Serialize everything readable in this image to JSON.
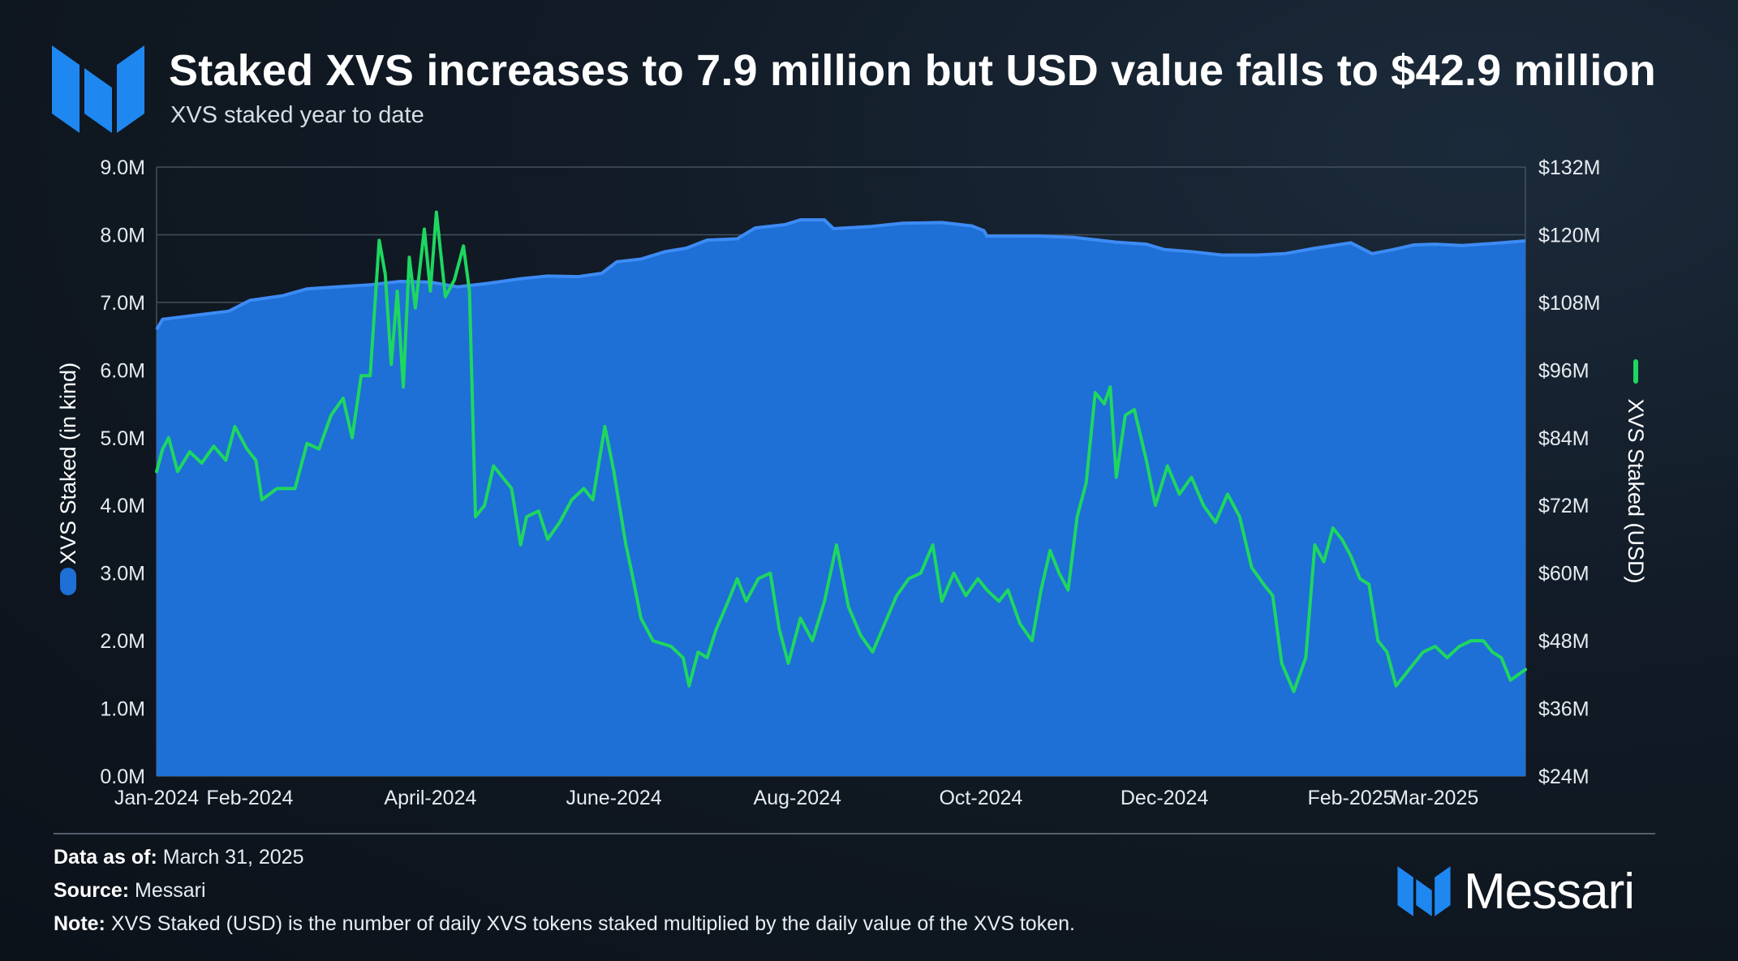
{
  "header": {
    "title": "Staked XVS increases to 7.9 million but USD value falls to $42.9 million",
    "subtitle": "XVS staked year to date"
  },
  "colors": {
    "area_fill": "#1e6fd6",
    "area_line": "#3d8bf5",
    "usd_line": "#1ed760",
    "axis_text": "#e6ebf0",
    "grid": "#44505d",
    "logo_blue": "#1e88f0"
  },
  "footer": {
    "data_as_of_label": "Data as of:",
    "data_as_of_value": " March 31, 2025",
    "source_label": "Source:",
    "source_value": " Messari",
    "note_label": "Note:",
    "note_value": " XVS Staked (USD) is the number of daily XVS tokens staked multiplied by the daily value of the XVS token."
  },
  "brand": {
    "name": "Messari",
    "icon": "messari-logo-icon"
  },
  "chart_data": {
    "type": "area+line",
    "title": "Staked XVS increases to 7.9 million but USD value falls to $42.9 million",
    "subtitle": "XVS staked year to date",
    "xlabel": "",
    "ylabel_left": "XVS Staked (in kind)",
    "ylabel_right": "XVS Staked (USD)",
    "ylim_left": [
      0,
      9000000
    ],
    "ylim_right": [
      24000000,
      132000000
    ],
    "xlim": [
      "2024-01-01",
      "2025-03-31"
    ],
    "y_ticks_left": [
      "0.0M",
      "1.0M",
      "2.0M",
      "3.0M",
      "4.0M",
      "5.0M",
      "6.0M",
      "7.0M",
      "8.0M",
      "9.0M"
    ],
    "y_ticks_right": [
      "$24M",
      "$36M",
      "$48M",
      "$60M",
      "$72M",
      "$84M",
      "$96M",
      "$108M",
      "$120M",
      "$132M"
    ],
    "x_ticks": [
      {
        "label": "Jan-2024",
        "date": "2024-01-01"
      },
      {
        "label": "Feb-2024",
        "date": "2024-02-01"
      },
      {
        "label": "April-2024",
        "date": "2024-04-01"
      },
      {
        "label": "June-2024",
        "date": "2024-06-01"
      },
      {
        "label": "Aug-2024",
        "date": "2024-08-01"
      },
      {
        "label": "Oct-2024",
        "date": "2024-10-01"
      },
      {
        "label": "Dec-2024",
        "date": "2024-12-01"
      },
      {
        "label": "Feb-2025",
        "date": "2025-02-01"
      },
      {
        "label": "Mar-2025",
        "date": "2025-03-01"
      }
    ],
    "grid": true,
    "series": [
      {
        "name": "XVS Staked (in kind)",
        "kind": "area",
        "axis": "left",
        "unit": "tokens",
        "points": [
          [
            "2024-01-01",
            6600000
          ],
          [
            "2024-01-03",
            6750000
          ],
          [
            "2024-01-12",
            6800000
          ],
          [
            "2024-01-25",
            6870000
          ],
          [
            "2024-02-01",
            7030000
          ],
          [
            "2024-02-12",
            7100000
          ],
          [
            "2024-02-20",
            7200000
          ],
          [
            "2024-03-01",
            7230000
          ],
          [
            "2024-03-12",
            7260000
          ],
          [
            "2024-03-22",
            7310000
          ],
          [
            "2024-04-01",
            7300000
          ],
          [
            "2024-04-10",
            7230000
          ],
          [
            "2024-04-20",
            7280000
          ],
          [
            "2024-05-01",
            7350000
          ],
          [
            "2024-05-10",
            7390000
          ],
          [
            "2024-05-20",
            7380000
          ],
          [
            "2024-05-28",
            7430000
          ],
          [
            "2024-06-02",
            7600000
          ],
          [
            "2024-06-10",
            7640000
          ],
          [
            "2024-06-18",
            7750000
          ],
          [
            "2024-06-25",
            7800000
          ],
          [
            "2024-07-02",
            7920000
          ],
          [
            "2024-07-12",
            7940000
          ],
          [
            "2024-07-18",
            8100000
          ],
          [
            "2024-07-28",
            8150000
          ],
          [
            "2024-08-02",
            8220000
          ],
          [
            "2024-08-10",
            8220000
          ],
          [
            "2024-08-13",
            8090000
          ],
          [
            "2024-08-25",
            8120000
          ],
          [
            "2024-09-05",
            8170000
          ],
          [
            "2024-09-18",
            8180000
          ],
          [
            "2024-09-28",
            8130000
          ],
          [
            "2024-10-02",
            8060000
          ],
          [
            "2024-10-03",
            7980000
          ],
          [
            "2024-10-20",
            7980000
          ],
          [
            "2024-11-01",
            7960000
          ],
          [
            "2024-11-15",
            7890000
          ],
          [
            "2024-11-25",
            7860000
          ],
          [
            "2024-12-01",
            7780000
          ],
          [
            "2024-12-10",
            7750000
          ],
          [
            "2024-12-20",
            7700000
          ],
          [
            "2025-01-01",
            7700000
          ],
          [
            "2025-01-10",
            7720000
          ],
          [
            "2025-01-20",
            7800000
          ],
          [
            "2025-02-01",
            7880000
          ],
          [
            "2025-02-08",
            7720000
          ],
          [
            "2025-02-15",
            7780000
          ],
          [
            "2025-02-22",
            7850000
          ],
          [
            "2025-03-01",
            7860000
          ],
          [
            "2025-03-10",
            7840000
          ],
          [
            "2025-03-20",
            7870000
          ],
          [
            "2025-03-31",
            7910000
          ]
        ]
      },
      {
        "name": "XVS Staked (USD)",
        "kind": "line",
        "axis": "right",
        "unit": "USD",
        "points": [
          [
            "2024-01-01",
            78000000
          ],
          [
            "2024-01-03",
            82000000
          ],
          [
            "2024-01-05",
            84000000
          ],
          [
            "2024-01-08",
            78000000
          ],
          [
            "2024-01-12",
            81500000
          ],
          [
            "2024-01-16",
            79500000
          ],
          [
            "2024-01-20",
            82500000
          ],
          [
            "2024-01-24",
            80000000
          ],
          [
            "2024-01-27",
            86000000
          ],
          [
            "2024-01-31",
            82000000
          ],
          [
            "2024-02-03",
            80000000
          ],
          [
            "2024-02-05",
            73000000
          ],
          [
            "2024-02-10",
            75000000
          ],
          [
            "2024-02-16",
            75000000
          ],
          [
            "2024-02-20",
            83000000
          ],
          [
            "2024-02-24",
            82000000
          ],
          [
            "2024-02-28",
            88000000
          ],
          [
            "2024-03-03",
            91000000
          ],
          [
            "2024-03-06",
            84000000
          ],
          [
            "2024-03-09",
            95000000
          ],
          [
            "2024-03-12",
            95000000
          ],
          [
            "2024-03-15",
            119000000
          ],
          [
            "2024-03-17",
            113000000
          ],
          [
            "2024-03-19",
            97000000
          ],
          [
            "2024-03-21",
            110000000
          ],
          [
            "2024-03-23",
            93000000
          ],
          [
            "2024-03-25",
            116000000
          ],
          [
            "2024-03-27",
            107000000
          ],
          [
            "2024-03-30",
            121000000
          ],
          [
            "2024-04-01",
            110000000
          ],
          [
            "2024-04-03",
            124000000
          ],
          [
            "2024-04-06",
            109000000
          ],
          [
            "2024-04-09",
            112000000
          ],
          [
            "2024-04-12",
            118000000
          ],
          [
            "2024-04-14",
            110000000
          ],
          [
            "2024-04-16",
            70000000
          ],
          [
            "2024-04-19",
            72000000
          ],
          [
            "2024-04-22",
            79000000
          ],
          [
            "2024-04-25",
            77000000
          ],
          [
            "2024-04-28",
            75000000
          ],
          [
            "2024-05-01",
            65000000
          ],
          [
            "2024-05-03",
            70000000
          ],
          [
            "2024-05-07",
            71000000
          ],
          [
            "2024-05-10",
            66000000
          ],
          [
            "2024-05-14",
            69000000
          ],
          [
            "2024-05-18",
            73000000
          ],
          [
            "2024-05-22",
            75000000
          ],
          [
            "2024-05-25",
            73000000
          ],
          [
            "2024-05-29",
            86000000
          ],
          [
            "2024-06-01",
            78000000
          ],
          [
            "2024-06-05",
            65000000
          ],
          [
            "2024-06-07",
            60000000
          ],
          [
            "2024-06-10",
            52000000
          ],
          [
            "2024-06-14",
            48000000
          ],
          [
            "2024-06-20",
            47000000
          ],
          [
            "2024-06-24",
            45000000
          ],
          [
            "2024-06-26",
            40000000
          ],
          [
            "2024-06-29",
            46000000
          ],
          [
            "2024-07-02",
            45000000
          ],
          [
            "2024-07-05",
            50000000
          ],
          [
            "2024-07-09",
            55000000
          ],
          [
            "2024-07-12",
            59000000
          ],
          [
            "2024-07-15",
            55000000
          ],
          [
            "2024-07-19",
            59000000
          ],
          [
            "2024-07-23",
            60000000
          ],
          [
            "2024-07-26",
            50000000
          ],
          [
            "2024-07-29",
            44000000
          ],
          [
            "2024-08-02",
            52000000
          ],
          [
            "2024-08-06",
            48000000
          ],
          [
            "2024-08-10",
            55000000
          ],
          [
            "2024-08-14",
            65000000
          ],
          [
            "2024-08-18",
            54000000
          ],
          [
            "2024-08-22",
            49000000
          ],
          [
            "2024-08-26",
            46000000
          ],
          [
            "2024-08-30",
            51000000
          ],
          [
            "2024-09-03",
            56000000
          ],
          [
            "2024-09-07",
            59000000
          ],
          [
            "2024-09-11",
            60000000
          ],
          [
            "2024-09-15",
            65000000
          ],
          [
            "2024-09-18",
            55000000
          ],
          [
            "2024-09-22",
            60000000
          ],
          [
            "2024-09-26",
            56000000
          ],
          [
            "2024-09-30",
            59000000
          ],
          [
            "2024-10-03",
            57000000
          ],
          [
            "2024-10-07",
            55000000
          ],
          [
            "2024-10-10",
            57000000
          ],
          [
            "2024-10-14",
            51000000
          ],
          [
            "2024-10-18",
            48000000
          ],
          [
            "2024-10-21",
            57000000
          ],
          [
            "2024-10-24",
            64000000
          ],
          [
            "2024-10-27",
            60000000
          ],
          [
            "2024-10-30",
            57000000
          ],
          [
            "2024-11-02",
            70000000
          ],
          [
            "2024-11-05",
            76000000
          ],
          [
            "2024-11-08",
            92000000
          ],
          [
            "2024-11-11",
            90000000
          ],
          [
            "2024-11-13",
            93000000
          ],
          [
            "2024-11-15",
            77000000
          ],
          [
            "2024-11-18",
            88000000
          ],
          [
            "2024-11-21",
            89000000
          ],
          [
            "2024-11-25",
            80000000
          ],
          [
            "2024-11-28",
            72000000
          ],
          [
            "2024-12-02",
            79000000
          ],
          [
            "2024-12-06",
            74000000
          ],
          [
            "2024-12-10",
            77000000
          ],
          [
            "2024-12-14",
            72000000
          ],
          [
            "2024-12-18",
            69000000
          ],
          [
            "2024-12-22",
            74000000
          ],
          [
            "2024-12-26",
            70000000
          ],
          [
            "2024-12-30",
            61000000
          ],
          [
            "2025-01-03",
            58000000
          ],
          [
            "2025-01-06",
            56000000
          ],
          [
            "2025-01-09",
            44000000
          ],
          [
            "2025-01-13",
            39000000
          ],
          [
            "2025-01-17",
            45000000
          ],
          [
            "2025-01-20",
            65000000
          ],
          [
            "2025-01-23",
            62000000
          ],
          [
            "2025-01-26",
            68000000
          ],
          [
            "2025-01-29",
            66000000
          ],
          [
            "2025-02-01",
            63000000
          ],
          [
            "2025-02-04",
            59000000
          ],
          [
            "2025-02-07",
            58000000
          ],
          [
            "2025-02-10",
            48000000
          ],
          [
            "2025-02-13",
            46000000
          ],
          [
            "2025-02-16",
            40000000
          ],
          [
            "2025-02-19",
            42000000
          ],
          [
            "2025-02-22",
            44000000
          ],
          [
            "2025-02-25",
            46000000
          ],
          [
            "2025-03-01",
            47000000
          ],
          [
            "2025-03-05",
            45000000
          ],
          [
            "2025-03-09",
            47000000
          ],
          [
            "2025-03-13",
            48000000
          ],
          [
            "2025-03-17",
            48000000
          ],
          [
            "2025-03-20",
            46000000
          ],
          [
            "2025-03-23",
            45000000
          ],
          [
            "2025-03-26",
            41000000
          ],
          [
            "2025-03-31",
            42900000
          ]
        ]
      }
    ]
  }
}
